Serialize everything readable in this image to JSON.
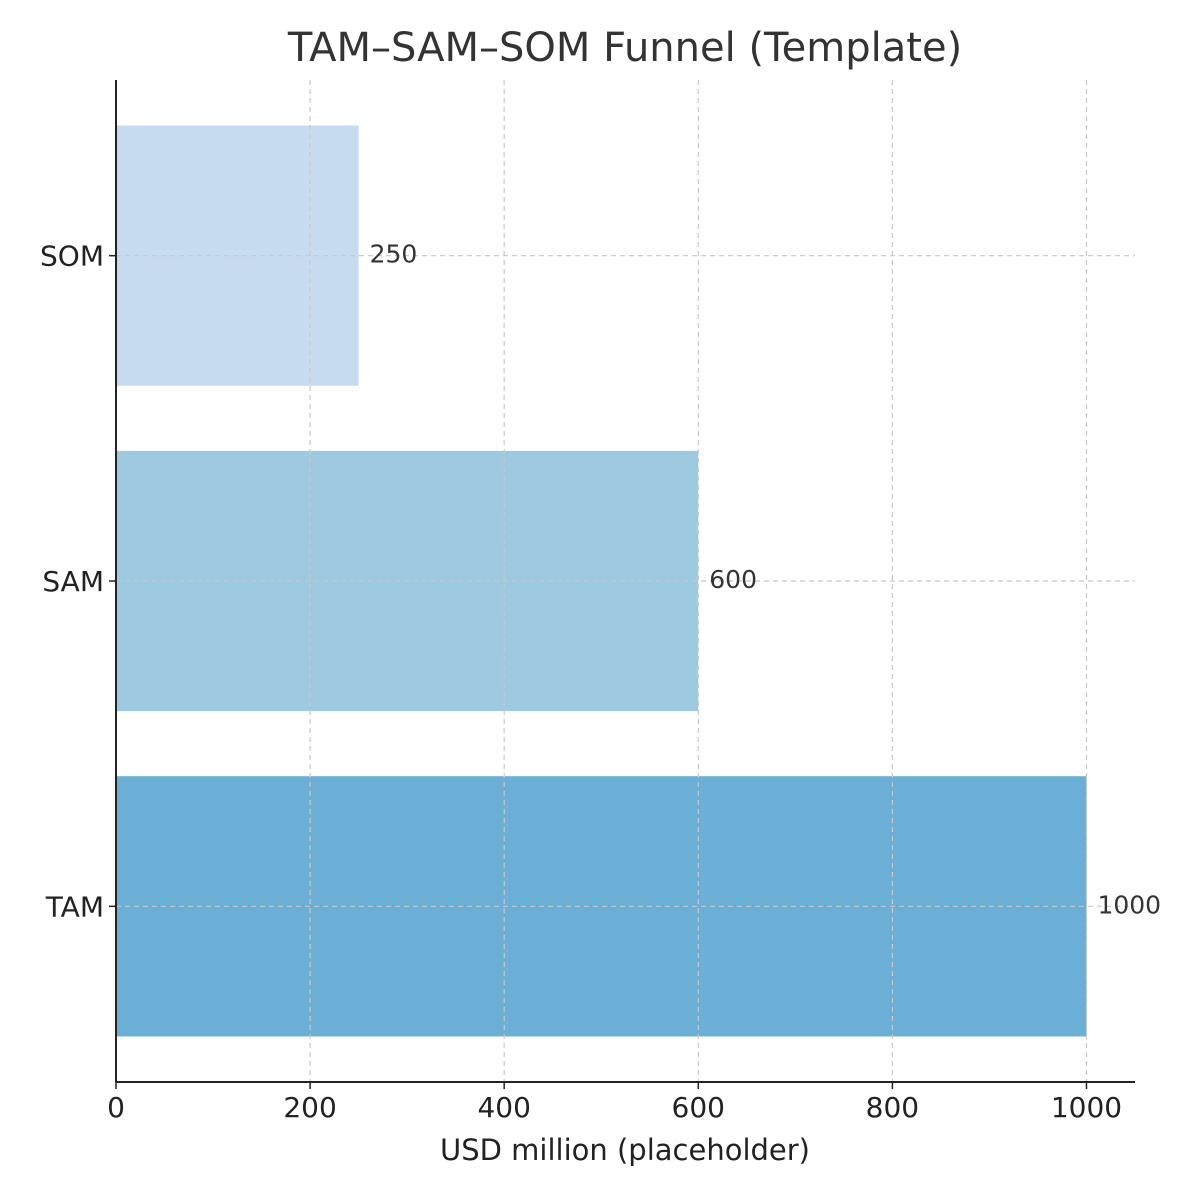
{
  "chart_data": {
    "type": "barh",
    "title": "TAM–SAM–SOM Funnel (Template)",
    "x_label": "USD million (placeholder)",
    "categories": [
      "TAM",
      "SAM",
      "SOM"
    ],
    "values": [
      1000,
      600,
      250
    ],
    "colors": [
      "#6baed6",
      "#9ecae1",
      "#c6dbef"
    ],
    "xlim": [
      0,
      1050
    ],
    "xticks": [
      0,
      200,
      400,
      600,
      800,
      1000
    ],
    "grid": true
  }
}
